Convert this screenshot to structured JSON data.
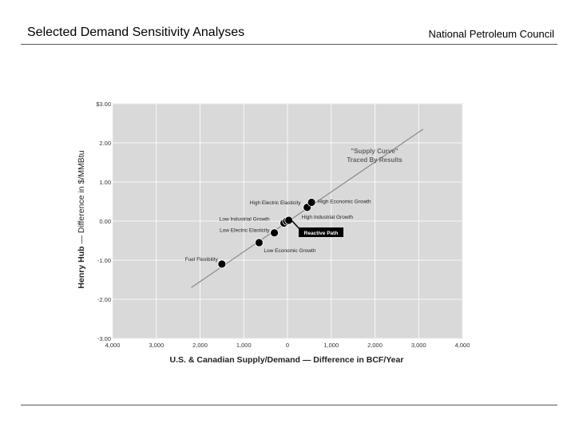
{
  "header": {
    "title": "Selected Demand Sensitivity Analyses",
    "organization": "National Petroleum Council"
  },
  "chart_data": {
    "type": "scatter",
    "title": "",
    "xlabel": "U.S. & Canadian Supply/Demand — Difference in BCF/Year",
    "ylabel_bold": "Henry Hub",
    "ylabel_rest": " — Difference in $/MMBtu",
    "xlim": [
      -4000,
      4000
    ],
    "ylim": [
      -3.0,
      3.0
    ],
    "x_ticks": [
      -4000,
      -3000,
      -2000,
      -1000,
      0,
      1000,
      2000,
      3000,
      4000
    ],
    "x_tick_labels": [
      "4,000",
      "3,000",
      "2,000",
      "1,000",
      "0",
      "1,000",
      "2,000",
      "3,000",
      "4,000"
    ],
    "y_ticks": [
      3,
      2,
      1,
      0,
      -1,
      -2,
      -3
    ],
    "y_tick_labels": [
      "$3.00",
      "2.00",
      "1.00",
      "0.00",
      "-1.00",
      "-2.00",
      "-3.00"
    ],
    "grid": true,
    "background": "#d9d9d9",
    "points": [
      {
        "label": "Fuel Flexibility",
        "x": -1500,
        "y": -1.1
      },
      {
        "label": "Low Economic Growth",
        "x": -650,
        "y": -0.55
      },
      {
        "label": "Low Electric Elasticity",
        "x": -300,
        "y": -0.3
      },
      {
        "label": "Low Industrial Growth",
        "x": -80,
        "y": -0.05
      },
      {
        "label": "",
        "x": -20,
        "y": 0.0
      },
      {
        "label": "High Industrial Growth",
        "x": 30,
        "y": 0.02
      },
      {
        "label": "High Electric Elasticity",
        "x": 450,
        "y": 0.35
      },
      {
        "label": "High Economic Growth",
        "x": 550,
        "y": 0.48
      }
    ],
    "trend_line": {
      "x": [
        -2200,
        3100
      ],
      "y": [
        -1.7,
        2.35
      ]
    },
    "annotations": {
      "supply_curve_line1": "\"Supply Curve\"",
      "supply_curve_line2": "Traced By Results",
      "reactive_path": "Reactive Path"
    }
  }
}
